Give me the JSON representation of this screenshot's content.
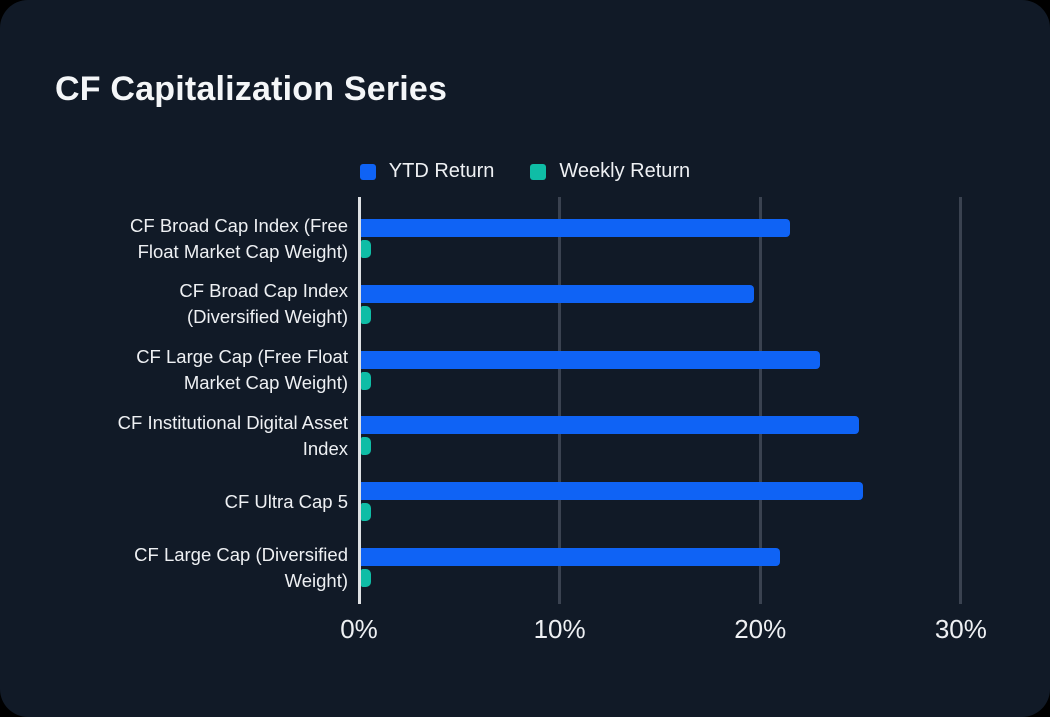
{
  "title": "CF Capitalization Series",
  "unit": "percent",
  "colors": {
    "background": "#000000",
    "card": "#111a27",
    "axis_line": "#dfe1e4",
    "gridline": "#3a4250",
    "text": "#eef0f3",
    "ytd_blue": "#0f63f5",
    "weekly_teal": "#0fbda6"
  },
  "legend": {
    "items": [
      {
        "label": "YTD Return",
        "color": "#0f63f5"
      },
      {
        "label": "Weekly Return",
        "color": "#0fbda6"
      }
    ]
  },
  "chart_data": {
    "type": "bar",
    "orientation": "horizontal",
    "title": "CF Capitalization Series",
    "categories": [
      "CF Broad Cap Index (Free Float Market Cap Weight)",
      "CF Broad Cap Index (Diversified Weight)",
      "CF Large Cap (Free Float Market Cap Weight)",
      "CF Institutional Digital Asset Index",
      "CF Ultra Cap 5",
      "CF Large Cap (Diversified Weight)"
    ],
    "series": [
      {
        "name": "YTD Return",
        "color": "#0f63f5",
        "values": [
          21.4,
          19.6,
          22.9,
          24.8,
          25.0,
          20.9
        ]
      },
      {
        "name": "Weekly Return",
        "color": "#0fbda6",
        "values": [
          0.5,
          0.5,
          0.5,
          0.5,
          0.5,
          0.5
        ]
      }
    ],
    "xlabel": "",
    "ylabel": "",
    "x_ticks": [
      "0%",
      "10%",
      "20%",
      "30%"
    ],
    "x_tick_values": [
      0,
      10,
      20,
      30
    ],
    "xlim": [
      0,
      31.9
    ],
    "grid": true,
    "legend_position": "top"
  }
}
